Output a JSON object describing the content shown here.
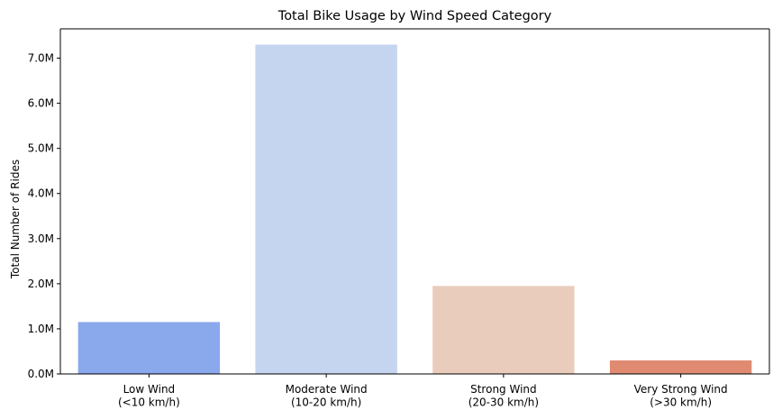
{
  "chart_data": {
    "type": "bar",
    "title": "Total Bike Usage by Wind Speed Category",
    "xlabel": "",
    "ylabel": "Total Number of Rides",
    "categories": [
      [
        "Low Wind",
        "(<10 km/h)"
      ],
      [
        "Moderate Wind",
        "(10-20 km/h)"
      ],
      [
        "Strong Wind",
        "(20-30 km/h)"
      ],
      [
        "Very Strong Wind",
        "(>30 km/h)"
      ]
    ],
    "values": [
      1150000,
      7300000,
      1950000,
      300000
    ],
    "colors": [
      "#8aa8ec",
      "#c5d5f0",
      "#eaccbd",
      "#e08a72"
    ],
    "ylim": [
      0,
      7650000
    ],
    "yticks": [
      0,
      1000000,
      2000000,
      3000000,
      4000000,
      5000000,
      6000000,
      7000000
    ],
    "ytick_labels": [
      "0.0M",
      "1.0M",
      "2.0M",
      "3.0M",
      "4.0M",
      "5.0M",
      "6.0M",
      "7.0M"
    ],
    "grid": false,
    "legend": "none"
  }
}
